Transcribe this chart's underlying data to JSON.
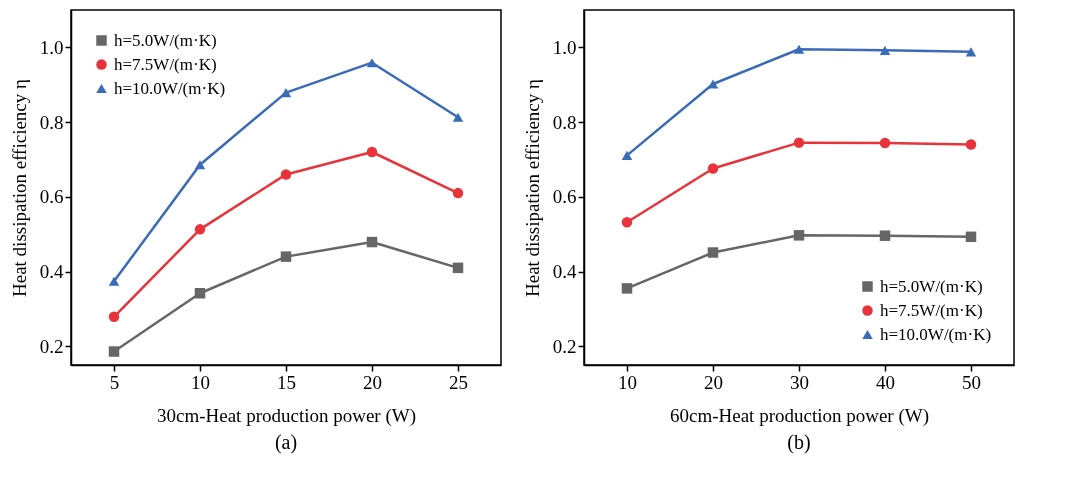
{
  "chart_data": [
    {
      "type": "line",
      "xlabel": "30cm-Heat production power (W)",
      "ylabel": "Heat dissipation efficiency η",
      "annotations": [
        "(a)"
      ],
      "x": [
        5,
        10,
        15,
        20,
        25
      ],
      "xlim": [
        2.5,
        27.5
      ],
      "xticks": [
        5,
        10,
        15,
        20,
        25
      ],
      "ylim": [
        0.15,
        1.1
      ],
      "yticks": [
        0.2,
        0.4,
        0.6,
        0.8,
        {
          "value": 1,
          "label": "1.0"
        }
      ],
      "legend": "top left",
      "grid": false,
      "line_style": "solid",
      "series": [
        {
          "name": "h=5.0W/(m·K)",
          "color": "#666666",
          "marker": "square",
          "values": [
            0.186,
            0.342,
            0.44,
            0.479,
            0.41
          ]
        },
        {
          "name": "h=7.5W/(m·K)",
          "color": "#e8333a",
          "marker": "circle",
          "values": [
            0.279,
            0.513,
            0.66,
            0.72,
            0.61
          ]
        },
        {
          "name": "h=10.0W/(m·K)",
          "color": "#3a6bb8",
          "marker": "triangle",
          "values": [
            0.374,
            0.686,
            0.879,
            0.959,
            0.813
          ]
        }
      ]
    },
    {
      "type": "line",
      "xlabel": "60cm-Heat production power (W)",
      "ylabel": "Heat dissipation efficiency η",
      "annotations": [
        "(b)"
      ],
      "x": [
        10,
        20,
        30,
        40,
        50
      ],
      "xlim": [
        5,
        55
      ],
      "xticks": [
        10,
        20,
        30,
        40,
        50
      ],
      "ylim": [
        0.15,
        1.1
      ],
      "yticks": [
        0.2,
        0.4,
        0.6,
        0.8,
        {
          "value": 1,
          "label": "1.0"
        }
      ],
      "legend": "bottom right",
      "grid": false,
      "line_style": "solid",
      "series": [
        {
          "name": "h=5.0W/(m·K)",
          "color": "#666666",
          "marker": "square",
          "values": [
            0.355,
            0.451,
            0.497,
            0.496,
            0.493
          ]
        },
        {
          "name": "h=7.5W/(m·K)",
          "color": "#e8333a",
          "marker": "circle",
          "values": [
            0.532,
            0.676,
            0.745,
            0.744,
            0.74
          ]
        },
        {
          "name": "h=10.0W/(m·K)",
          "color": "#3a6bb8",
          "marker": "triangle",
          "values": [
            0.711,
            0.902,
            0.995,
            0.992,
            0.988
          ]
        }
      ]
    }
  ]
}
